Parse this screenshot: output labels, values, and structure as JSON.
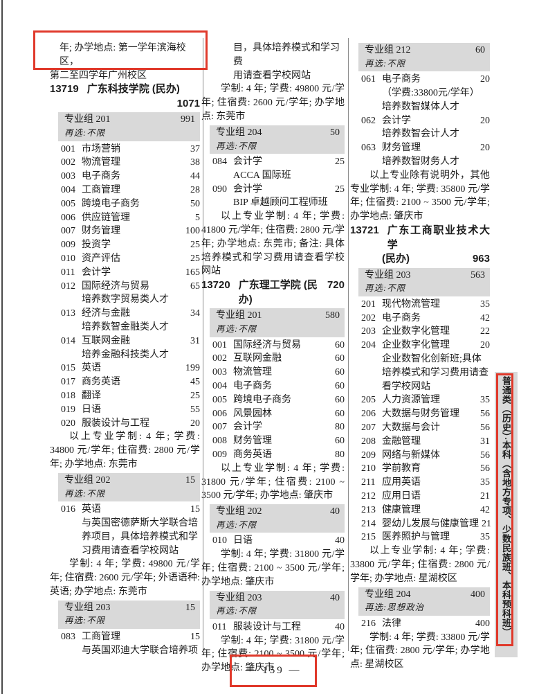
{
  "colors": {
    "annotation_red": "#e0392b",
    "group_header_bg": "#d9d9d9",
    "text": "#1c1c1c",
    "separator": "#8a8a8a"
  },
  "page": {
    "footer_page_number": "— 159 —",
    "category_tab": "普通类（历史）·本科（含地方专项、少数民族班、本科预科班）"
  },
  "columns": [
    {
      "blocks": [
        {
          "t": "cont",
          "boxed": true,
          "lines": [
            "年; 办学地点: 第一学年滨海校区，",
            "第二至四学年广州校区"
          ]
        },
        {
          "t": "school",
          "layout": "count-below",
          "code": "13719",
          "name": "广东科技学院 (民办)",
          "count": "1071"
        },
        {
          "t": "g",
          "label": "专业组 201",
          "count": "991",
          "resel": "再选:不限"
        },
        {
          "t": "m",
          "code": "001",
          "name": "市场营销",
          "count": "37"
        },
        {
          "t": "m",
          "code": "002",
          "name": "物流管理",
          "count": "38"
        },
        {
          "t": "m",
          "code": "003",
          "name": "电子商务",
          "count": "44"
        },
        {
          "t": "m",
          "code": "004",
          "name": "工商管理",
          "count": "28"
        },
        {
          "t": "m",
          "code": "005",
          "name": "跨境电子商务",
          "count": "50"
        },
        {
          "t": "m",
          "code": "006",
          "name": "供应链管理",
          "count": "5"
        },
        {
          "t": "m",
          "code": "007",
          "name": "财务管理",
          "count": "100"
        },
        {
          "t": "m",
          "code": "009",
          "name": "投资学",
          "count": "25"
        },
        {
          "t": "m",
          "code": "010",
          "name": "资产评估",
          "count": "25"
        },
        {
          "t": "m",
          "code": "011",
          "name": "会计学",
          "count": "165"
        },
        {
          "t": "m",
          "code": "012",
          "name": "国际经济与贸易",
          "count": "65",
          "notes": [
            "培养数字贸易类人才"
          ]
        },
        {
          "t": "m",
          "code": "013",
          "name": "经济与金融",
          "count": "34",
          "notes": [
            "培养数智金融类人才"
          ]
        },
        {
          "t": "m",
          "code": "014",
          "name": "互联网金融",
          "count": "31",
          "notes": [
            "培养金融科技类人才"
          ]
        },
        {
          "t": "m",
          "code": "015",
          "name": "英语",
          "count": "199"
        },
        {
          "t": "m",
          "code": "017",
          "name": "商务英语",
          "count": "45"
        },
        {
          "t": "m",
          "code": "018",
          "name": "翻译",
          "count": "25"
        },
        {
          "t": "m",
          "code": "019",
          "name": "日语",
          "count": "55"
        },
        {
          "t": "m",
          "code": "020",
          "name": "服装设计与工程",
          "count": "20"
        },
        {
          "t": "p",
          "text": "以上专业学制: 4 年; 学费: 34800 元/学年; 住宿费: 2800 元/学年; 办学地点: 东莞市"
        },
        {
          "t": "g",
          "label": "专业组 202",
          "count": "15",
          "resel": "再选:不限"
        },
        {
          "t": "m",
          "code": "016",
          "name": "英语",
          "count": "15",
          "notes": [
            "与英国密德萨斯大学联合培养项目，具体培养模式和学习费用请查看学校网站"
          ]
        },
        {
          "t": "p",
          "text": "学制: 4 年; 学费: 49800 元/学年; 住宿费: 2600 元/学年; 外语语种: 英语; 办学地点: 东莞市"
        },
        {
          "t": "g",
          "label": "专业组 203",
          "count": "15",
          "resel": "再选:不限"
        },
        {
          "t": "m",
          "code": "083",
          "name": "工商管理",
          "count": "15",
          "notes": [
            "与英国邓迪大学联合培养项"
          ]
        }
      ]
    },
    {
      "blocks": [
        {
          "t": "cont",
          "indent": true,
          "lines": [
            "目，具体培养模式和学习费",
            "用请查看学校网站"
          ]
        },
        {
          "t": "p",
          "text": "学制: 4 年; 学费: 49800 元/学年; 住宿费: 2600 元/学年; 办学地点: 东莞市"
        },
        {
          "t": "g",
          "label": "专业组 204",
          "count": "50",
          "resel": "再选:不限"
        },
        {
          "t": "m",
          "code": "084",
          "name": "会计学",
          "count": "25",
          "notes": [
            "ACCA 国际班"
          ]
        },
        {
          "t": "m",
          "code": "090",
          "name": "会计学",
          "count": "25",
          "notes": [
            "BIP 卓越顾问工程师班"
          ]
        },
        {
          "t": "p",
          "text": "以上专业学制: 4 年; 学费: 41800 元/学年; 住宿费: 2800 元/学年; 办学地点: 东莞市; 备注: 具体培养模式和学习费用请查看学校网站"
        },
        {
          "t": "school",
          "layout": "inline",
          "code": "13720",
          "name": "广东理工学院 (民办)",
          "count": "720"
        },
        {
          "t": "g",
          "label": "专业组 201",
          "count": "580",
          "resel": "再选:不限"
        },
        {
          "t": "m",
          "code": "001",
          "name": "国际经济与贸易",
          "count": "60"
        },
        {
          "t": "m",
          "code": "002",
          "name": "互联网金融",
          "count": "60"
        },
        {
          "t": "m",
          "code": "003",
          "name": "物流管理",
          "count": "60"
        },
        {
          "t": "m",
          "code": "004",
          "name": "电子商务",
          "count": "60"
        },
        {
          "t": "m",
          "code": "005",
          "name": "跨境电子商务",
          "count": "60"
        },
        {
          "t": "m",
          "code": "006",
          "name": "风景园林",
          "count": "60"
        },
        {
          "t": "m",
          "code": "007",
          "name": "会计学",
          "count": "80"
        },
        {
          "t": "m",
          "code": "008",
          "name": "财务管理",
          "count": "60"
        },
        {
          "t": "m",
          "code": "009",
          "name": "商务英语",
          "count": "80"
        },
        {
          "t": "p",
          "text": "以上专业学制: 4 年; 学费: 31800 元/学年; 住宿费: 2100 ~ 3500 元/学年; 办学地点: 肇庆市"
        },
        {
          "t": "g",
          "label": "专业组 202",
          "count": "40",
          "resel": "再选:不限"
        },
        {
          "t": "m",
          "code": "010",
          "name": "日语",
          "count": "40"
        },
        {
          "t": "p",
          "text": "学制: 4 年; 学费: 31800 元/学年; 住宿费: 2100 ~ 3500 元/学年; 办学地点: 肇庆市"
        },
        {
          "t": "g",
          "label": "专业组 203",
          "count": "40",
          "resel": "再选:不限"
        },
        {
          "t": "m",
          "code": "011",
          "name": "服装设计与工程",
          "count": "40"
        },
        {
          "t": "p",
          "text": "学制: 4 年; 学费: 31800 元/学年; 住宿费: 2100 ~ 3500 元/学年; 办学地点: 肇庆市"
        }
      ]
    },
    {
      "blocks": [
        {
          "t": "g",
          "label": "专业组 212",
          "count": "60",
          "resel": "再选:不限"
        },
        {
          "t": "m",
          "code": "061",
          "name": "电子商务",
          "count": "20",
          "notes": [
            "（学费:33800元/学年）",
            "培养数智媒体人才"
          ]
        },
        {
          "t": "m",
          "code": "062",
          "name": "会计学",
          "count": "20",
          "notes": [
            "培养数智会计人才"
          ]
        },
        {
          "t": "m",
          "code": "063",
          "name": "财务管理",
          "count": "20",
          "notes": [
            "培养数智财务人才"
          ]
        },
        {
          "t": "p",
          "text": "以上专业除有说明外，其他专业学制: 4 年; 学费: 35800 元/学年; 住宿费: 2100 ~ 3500 元/学年; 办学地点: 肇庆市"
        },
        {
          "t": "school",
          "layout": "two-line",
          "code": "13721",
          "name": "广东工商职业技术大学",
          "name2": "(民办)",
          "count": "963"
        },
        {
          "t": "g",
          "label": "专业组 203",
          "count": "563",
          "resel": "再选:不限"
        },
        {
          "t": "m",
          "code": "201",
          "name": "现代物流管理",
          "count": "35"
        },
        {
          "t": "m",
          "code": "202",
          "name": "电子商务",
          "count": "42"
        },
        {
          "t": "m",
          "code": "203",
          "name": "企业数字化管理",
          "count": "22"
        },
        {
          "t": "m",
          "code": "204",
          "name": "企业数字化管理",
          "count": "20",
          "notes": [
            "企业数智化创新班;具体培养模式和学习费用请查看学校网站"
          ]
        },
        {
          "t": "m",
          "code": "205",
          "name": "人力资源管理",
          "count": "35"
        },
        {
          "t": "m",
          "code": "206",
          "name": "大数据与财务管理",
          "count": "56"
        },
        {
          "t": "m",
          "code": "207",
          "name": "大数据与会计",
          "count": "56"
        },
        {
          "t": "m",
          "code": "208",
          "name": "金融管理",
          "count": "31"
        },
        {
          "t": "m",
          "code": "209",
          "name": "网络与新媒体",
          "count": "56"
        },
        {
          "t": "m",
          "code": "210",
          "name": "学前教育",
          "count": "56"
        },
        {
          "t": "m",
          "code": "211",
          "name": "应用英语",
          "count": "35"
        },
        {
          "t": "m",
          "code": "212",
          "name": "应用日语",
          "count": "21"
        },
        {
          "t": "m",
          "code": "213",
          "name": "健康管理",
          "count": "42"
        },
        {
          "t": "m",
          "code": "214",
          "name": "婴幼儿发展与健康管理",
          "count": "21"
        },
        {
          "t": "m",
          "code": "215",
          "name": "医养照护与管理",
          "count": "35"
        },
        {
          "t": "p",
          "text": "以上专业学制: 4 年; 学费: 33800 元/学年; 住宿费: 2800 元/学年; 办学地点: 星湖校区"
        },
        {
          "t": "g",
          "label": "专业组 204",
          "count": "400",
          "resel": "再选:思想政治"
        },
        {
          "t": "m",
          "code": "216",
          "name": "法律",
          "count": "400"
        },
        {
          "t": "p",
          "text": "学制: 4 年; 学费: 33800 元/学年; 住宿费: 2800 元/学年; 办学地点: 星湖校区"
        }
      ]
    }
  ]
}
